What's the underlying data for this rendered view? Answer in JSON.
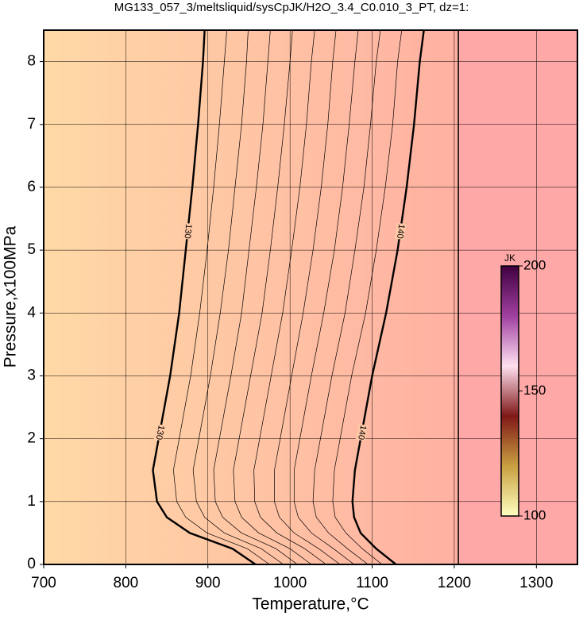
{
  "chart_data": {
    "type": "contour",
    "title": "MG133_057_3/meltsliquid/sysCpJK/H2O_3.4_C0.010_3_PT, dz=1:",
    "x_label": "Temperature,°C",
    "y_label": "Pressure,x100MPa",
    "xlim": [
      700,
      1350
    ],
    "xticks": [
      700,
      800,
      900,
      1000,
      1100,
      1200,
      1300
    ],
    "ylim": [
      0,
      8.5
    ],
    "yticks": [
      0,
      1,
      2,
      3,
      4,
      5,
      6,
      7,
      8
    ],
    "grid": true,
    "boundary_x": 1205,
    "background_colors": [
      "#ffd9a6",
      "#ffb0a2",
      "#ffa8a8"
    ],
    "contour_y": [
      0,
      0.25,
      0.5,
      0.75,
      1,
      1.5,
      2,
      3,
      4,
      5,
      6,
      7,
      8,
      8.5
    ],
    "contours": [
      {
        "level": 130,
        "bold": true,
        "x": [
          958,
          930,
          878,
          850,
          838,
          833,
          840,
          854,
          865,
          873,
          881,
          888,
          894,
          896
        ]
      },
      {
        "level": 131,
        "x": [
          975,
          948,
          899,
          873,
          862,
          858,
          865,
          879,
          890,
          899,
          907,
          914,
          920,
          923
        ]
      },
      {
        "level": 132,
        "x": [
          992,
          965,
          920,
          896,
          886,
          882,
          889,
          903,
          915,
          925,
          933,
          941,
          947,
          949
        ]
      },
      {
        "level": 133,
        "x": [
          1009,
          983,
          941,
          918,
          909,
          907,
          914,
          928,
          941,
          950,
          959,
          967,
          973,
          976
        ]
      },
      {
        "level": 134,
        "x": [
          1026,
          1000,
          962,
          941,
          933,
          931,
          938,
          952,
          966,
          976,
          985,
          993,
          1000,
          1003
        ]
      },
      {
        "level": 135,
        "x": [
          1044,
          1018,
          984,
          964,
          957,
          956,
          963,
          977,
          991,
          1002,
          1012,
          1020,
          1026,
          1030
        ]
      },
      {
        "level": 136,
        "x": [
          1061,
          1035,
          1005,
          987,
          981,
          981,
          988,
          1002,
          1016,
          1028,
          1038,
          1046,
          1052,
          1056
        ]
      },
      {
        "level": 137,
        "x": [
          1078,
          1053,
          1026,
          1010,
          1005,
          1005,
          1012,
          1026,
          1041,
          1054,
          1064,
          1072,
          1079,
          1083
        ]
      },
      {
        "level": 138,
        "x": [
          1095,
          1070,
          1047,
          1032,
          1028,
          1030,
          1037,
          1051,
          1067,
          1079,
          1090,
          1098,
          1105,
          1110
        ]
      },
      {
        "level": 139,
        "x": [
          1112,
          1088,
          1068,
          1055,
          1052,
          1054,
          1061,
          1075,
          1092,
          1105,
          1116,
          1125,
          1131,
          1136
        ]
      },
      {
        "level": 140,
        "bold": true,
        "x": [
          1129,
          1105,
          1086,
          1078,
          1076,
          1079,
          1086,
          1100,
          1117,
          1131,
          1142,
          1151,
          1158,
          1163
        ]
      }
    ],
    "colorbar": {
      "label": "JK",
      "clim": [
        100,
        200
      ],
      "ticks": [
        100,
        150,
        200
      ],
      "colors": [
        "#ffffc0",
        "#c8a040",
        "#801818",
        "#ffe0f0",
        "#a040a0",
        "#400040"
      ]
    }
  }
}
